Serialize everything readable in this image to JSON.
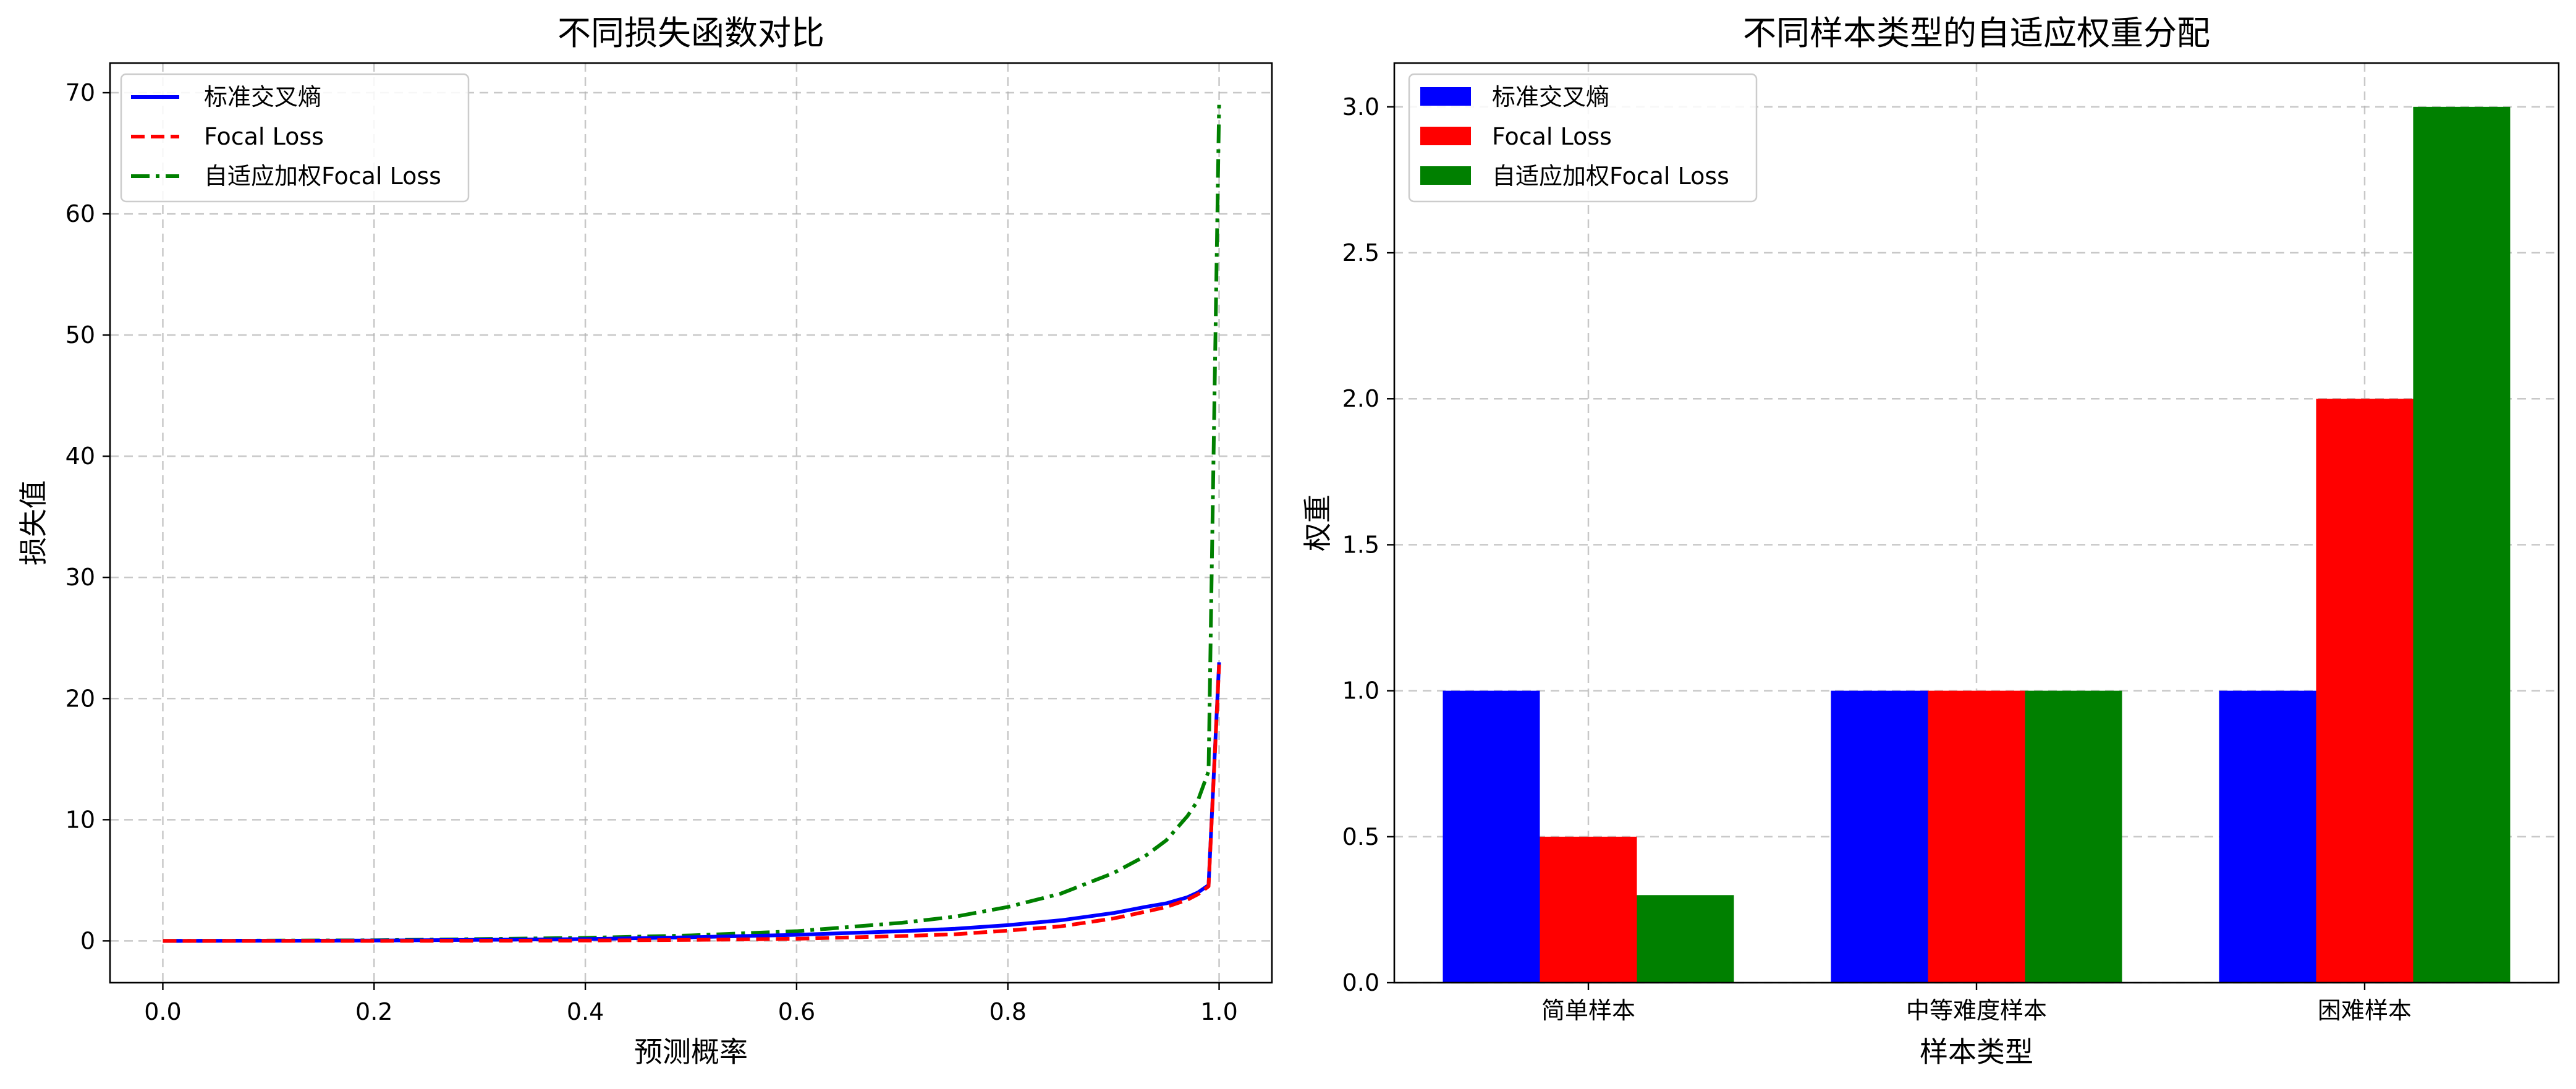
{
  "chart_data": [
    {
      "type": "line",
      "title": "不同损失函数对比",
      "xlabel": "预测概率",
      "ylabel": "损失值",
      "xlim": [
        -0.05,
        1.05
      ],
      "ylim": [
        -3.45,
        72.45
      ],
      "xticks": [
        "0.0",
        "0.2",
        "0.4",
        "0.6",
        "0.8",
        "1.0"
      ],
      "yticks": [
        "0",
        "10",
        "20",
        "30",
        "40",
        "50",
        "60",
        "70"
      ],
      "grid": true,
      "legend_position": "top-left",
      "series": [
        {
          "name": "标准交叉熵",
          "color": "#0000ff",
          "style": "solid",
          "x": [
            0.0,
            0.2,
            0.4,
            0.5,
            0.6,
            0.7,
            0.75,
            0.8,
            0.85,
            0.9,
            0.93,
            0.95,
            0.97,
            0.98,
            0.99,
            1.0
          ],
          "y": [
            0.0,
            0.03,
            0.15,
            0.3,
            0.5,
            0.8,
            1.0,
            1.3,
            1.7,
            2.3,
            2.8,
            3.1,
            3.6,
            4.0,
            4.6,
            23.0
          ]
        },
        {
          "name": "Focal Loss",
          "color": "#ff0000",
          "style": "dashed",
          "x": [
            0.0,
            0.2,
            0.4,
            0.5,
            0.6,
            0.7,
            0.75,
            0.8,
            0.85,
            0.9,
            0.93,
            0.95,
            0.97,
            0.98,
            0.99,
            1.0
          ],
          "y": [
            0.0,
            0.0,
            0.03,
            0.08,
            0.18,
            0.4,
            0.55,
            0.85,
            1.2,
            1.85,
            2.4,
            2.8,
            3.4,
            3.85,
            4.5,
            22.8
          ]
        },
        {
          "name": "自适应加权Focal Loss",
          "color": "#008000",
          "style": "dashdot",
          "x": [
            0.0,
            0.2,
            0.4,
            0.5,
            0.6,
            0.7,
            0.75,
            0.8,
            0.85,
            0.9,
            0.93,
            0.95,
            0.97,
            0.98,
            0.99,
            1.0
          ],
          "y": [
            0.0,
            0.05,
            0.25,
            0.45,
            0.8,
            1.5,
            2.0,
            2.8,
            3.9,
            5.6,
            7.0,
            8.3,
            10.3,
            11.6,
            14.0,
            69.0
          ]
        }
      ]
    },
    {
      "type": "bar",
      "title": "不同样本类型的自适应权重分配",
      "xlabel": "样本类型",
      "ylabel": "权重",
      "categories": [
        "简单样本",
        "中等难度样本",
        "困难样本"
      ],
      "ylim": [
        0,
        3.15
      ],
      "yticks": [
        "0.0",
        "0.5",
        "1.0",
        "1.5",
        "2.0",
        "2.5",
        "3.0"
      ],
      "grid": true,
      "legend_position": "top-left",
      "series": [
        {
          "name": "标准交叉熵",
          "color": "#0000ff",
          "values": [
            1.0,
            1.0,
            1.0
          ]
        },
        {
          "name": "Focal Loss",
          "color": "#ff0000",
          "values": [
            0.5,
            1.0,
            2.0
          ]
        },
        {
          "name": "自适应加权Focal Loss",
          "color": "#008000",
          "values": [
            0.3,
            1.0,
            3.0
          ]
        }
      ]
    }
  ]
}
